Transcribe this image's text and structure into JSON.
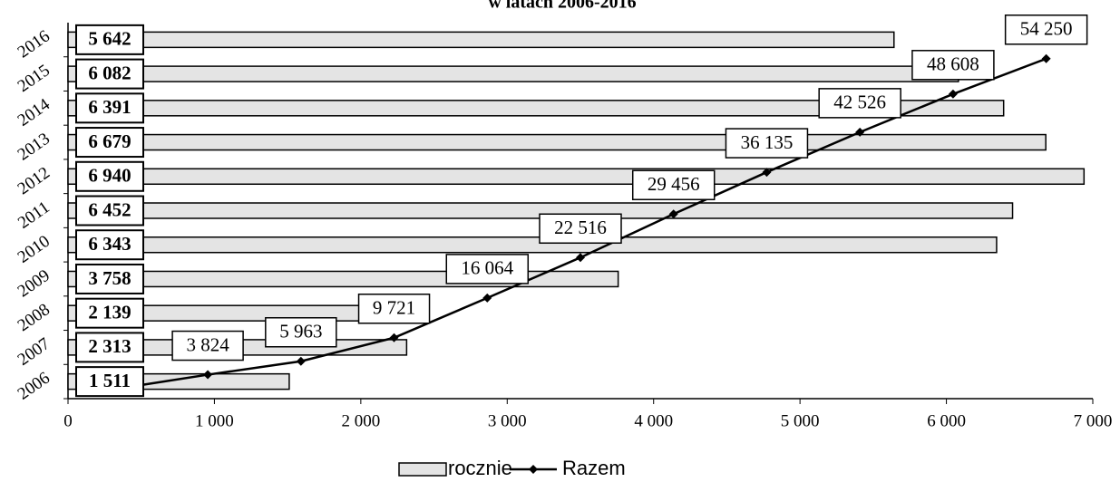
{
  "chart_data": {
    "type": "bar",
    "orientation": "horizontal",
    "title": "w latach 2006-2016",
    "categories": [
      "2006",
      "2007",
      "2008",
      "2009",
      "2010",
      "2011",
      "2012",
      "2013",
      "2014",
      "2015",
      "2016"
    ],
    "series": [
      {
        "name": "rocznie",
        "color": "#e4e4e4",
        "values": [
          1511,
          2313,
          2139,
          3758,
          6343,
          6452,
          6940,
          6679,
          6391,
          6082,
          5642
        ],
        "value_labels": [
          "1 511",
          "2 313",
          "2 139",
          "3 758",
          "6 343",
          "6 452",
          "6 940",
          "6 679",
          "6 391",
          "6 082",
          "5 642"
        ]
      },
      {
        "name": "Razem",
        "type": "line",
        "axis": "y2",
        "color": "#000000",
        "values": [
          1511,
          3824,
          5963,
          9721,
          16064,
          22516,
          29456,
          36135,
          42526,
          48608,
          54250
        ],
        "value_labels": [
          "1 511",
          "3 824",
          "5 963",
          "9 721",
          "16 064",
          "22 516",
          "29 456",
          "36 135",
          "42 526",
          "48 608",
          "54 250"
        ]
      }
    ],
    "xlim": [
      0,
      7000
    ],
    "xticks": [
      0,
      {
        "value": 1000,
        "label": "1 000"
      },
      {
        "value": 2000,
        "label": "2 000"
      },
      {
        "value": 3000,
        "label": "3 000"
      },
      {
        "value": 4000,
        "label": "4 000"
      },
      {
        "value": 5000,
        "label": "5 000"
      },
      {
        "value": 6000,
        "label": "6 000"
      },
      {
        "value": 7000,
        "label": "7 000"
      }
    ],
    "y2lim": [
      0,
      60000
    ],
    "legend": "bottom"
  }
}
